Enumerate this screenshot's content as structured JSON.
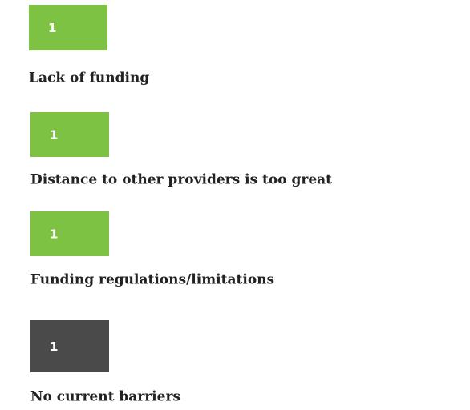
{
  "chart_data": {
    "type": "bar",
    "categories": [
      "Lack of funding",
      "Distance to other providers is too great",
      "Funding regulations/limitations",
      "No current barriers"
    ],
    "values": [
      1,
      1,
      1,
      1
    ],
    "colors": [
      "#7dc242",
      "#7dc242",
      "#7dc242",
      "#4a4a4a"
    ]
  }
}
